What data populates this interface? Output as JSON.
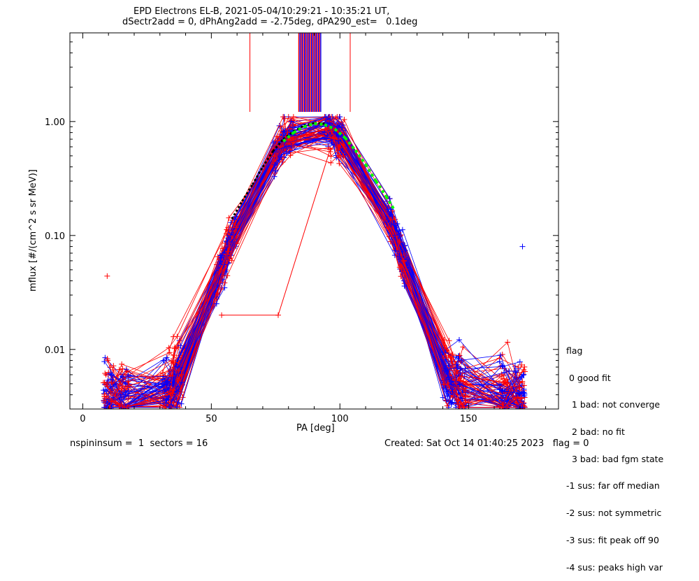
{
  "chart_data": {
    "type": "scatter",
    "title": "EPD Electrons EL-B, 2021-05-04/10:29:21 - 10:35:21 UT,",
    "subtitle": "dSectr2add = 0, dPhAng2add = -2.75deg, dPA290_est=   0.1deg",
    "xlabel": "PA [deg]",
    "ylabel": "mflux [#/(cm^2 s sr MeV)]",
    "xlim": [
      -5,
      185
    ],
    "ylim": [
      0.003,
      6.0
    ],
    "yscale": "log",
    "x_ticks": [
      0,
      50,
      100,
      150
    ],
    "x_tick_labels": [
      "0",
      "50",
      "100",
      "150"
    ],
    "y_ticks": [
      0.01,
      0.1,
      1.0
    ],
    "y_tick_labels": [
      "0.01",
      "0.10",
      "1.00"
    ],
    "grid": false,
    "colors": {
      "series_a": "#ff0000",
      "series_b": "#0000ff",
      "fit_fit": "#00ff00",
      "fit_model": "#000000"
    },
    "pa_bins": [
      10,
      16,
      33,
      37,
      54,
      58,
      76,
      80,
      96,
      100,
      120,
      124,
      142,
      147,
      164,
      170
    ],
    "outliers": [
      {
        "x": 9.5,
        "y": 0.044,
        "color": "#ff0000"
      },
      {
        "x": 171,
        "y": 0.08,
        "color": "#0000ff"
      },
      {
        "x": 76,
        "y": 0.02,
        "color": "#ff0000"
      },
      {
        "x": 54,
        "y": 0.02,
        "color": "#ff0000"
      }
    ],
    "fit_green": [
      {
        "x": 78,
        "y": 0.67
      },
      {
        "x": 82,
        "y": 0.8
      },
      {
        "x": 86,
        "y": 0.9
      },
      {
        "x": 90,
        "y": 0.96
      },
      {
        "x": 94,
        "y": 0.94
      },
      {
        "x": 98,
        "y": 0.86
      },
      {
        "x": 102,
        "y": 0.72
      },
      {
        "x": 106,
        "y": 0.56
      },
      {
        "x": 110,
        "y": 0.42
      },
      {
        "x": 114,
        "y": 0.3
      },
      {
        "x": 118,
        "y": 0.22
      },
      {
        "x": 121,
        "y": 0.17
      }
    ],
    "fit_black": [
      {
        "x": 58,
        "y": 0.14
      },
      {
        "x": 62,
        "y": 0.2
      },
      {
        "x": 66,
        "y": 0.28
      },
      {
        "x": 70,
        "y": 0.4
      },
      {
        "x": 74,
        "y": 0.55
      },
      {
        "x": 78,
        "y": 0.7
      },
      {
        "x": 82,
        "y": 0.82
      },
      {
        "x": 86,
        "y": 0.92
      },
      {
        "x": 90,
        "y": 0.97
      },
      {
        "x": 94,
        "y": 0.96
      }
    ],
    "top_markers_red": [
      65,
      104
    ],
    "top_band": {
      "from": 84,
      "to": 93
    }
  },
  "legend": {
    "title": "flag",
    "items": [
      " 0 good fit",
      "  1 bad: not converge",
      "  2 bad: no fit",
      "  3 bad: bad fgm state",
      "-1 sus: far off median",
      "-2 sus: not symmetric",
      "-3 sus: fit peak off 90",
      "-4 sus: peaks high var"
    ]
  },
  "footer": {
    "left": "nspininsum =  1  sectors = 16",
    "right": "Created: Sat Oct 14 01:40:25 2023   flag = 0"
  }
}
